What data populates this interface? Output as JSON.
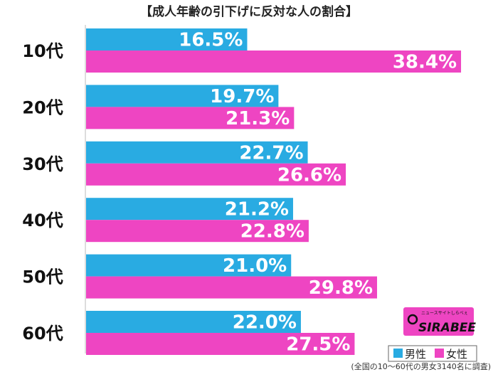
{
  "chart_data": {
    "type": "bar",
    "orientation": "horizontal",
    "title": "【成人年齢の引下げに反対な人の割合】",
    "categories": [
      "10代",
      "20代",
      "30代",
      "40代",
      "50代",
      "60代"
    ],
    "series": [
      {
        "name": "男性",
        "color": "#29ABE2",
        "values": [
          16.5,
          19.7,
          22.7,
          21.2,
          21.0,
          22.0
        ]
      },
      {
        "name": "女性",
        "color": "#EE45C2",
        "values": [
          38.4,
          21.3,
          26.6,
          22.8,
          29.8,
          27.5
        ]
      }
    ],
    "value_suffix": "%",
    "xlim": [
      0,
      40
    ],
    "grid": false,
    "legend_position": "bottom-right"
  },
  "logo": {
    "text": "SIRABEE",
    "tagline": "ニュースサイトしらべぇ",
    "icon": "sirabee-logo-icon"
  },
  "footnote": "(全国の10〜60代の男女3140名に調査)"
}
